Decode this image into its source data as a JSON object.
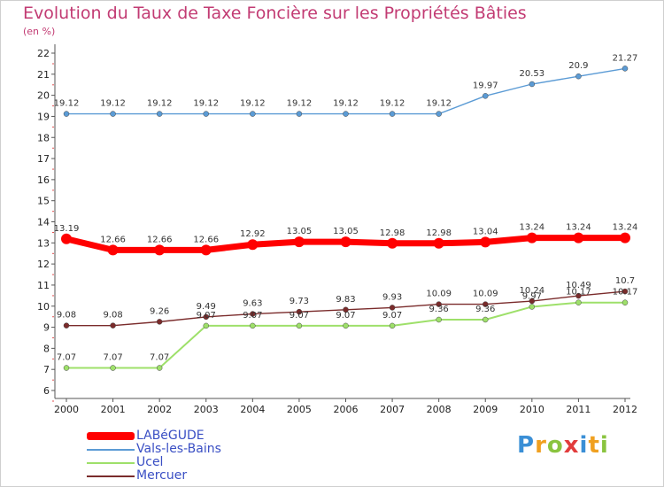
{
  "chart_data": {
    "type": "line",
    "title": "Evolution du Taux de Taxe Foncière sur les Propriétés Bâties",
    "unit_label": "(en %)",
    "xlabel": "",
    "ylabel": "",
    "categories": [
      "2000",
      "2001",
      "2002",
      "2003",
      "2004",
      "2005",
      "2006",
      "2007",
      "2008",
      "2009",
      "2010",
      "2011",
      "2012"
    ],
    "ylim": [
      6,
      22
    ],
    "yticks": [
      6,
      7,
      8,
      9,
      10,
      11,
      12,
      13,
      14,
      15,
      16,
      17,
      18,
      19,
      20,
      21,
      22
    ],
    "grid": false,
    "legend_position": "bottom-left",
    "series": [
      {
        "name": "LABéGUDE",
        "color": "#ff0000",
        "values": [
          13.19,
          12.66,
          12.66,
          12.66,
          12.92,
          13.05,
          13.05,
          12.98,
          12.98,
          13.04,
          13.24,
          13.24,
          13.24
        ],
        "labels": [
          "13.19",
          "12.66",
          "12.66",
          "12.66",
          "12.92",
          "13.05",
          "13.05",
          "12.98",
          "12.98",
          "13.04",
          "13.24",
          "13.24",
          "13.24"
        ]
      },
      {
        "name": "Vals-les-Bains",
        "color": "#5b9bd5",
        "values": [
          19.12,
          19.12,
          19.12,
          19.12,
          19.12,
          19.12,
          19.12,
          19.12,
          19.12,
          19.97,
          20.53,
          20.9,
          21.27
        ],
        "labels": [
          "19.12",
          "19.12",
          "19.12",
          "19.12",
          "19.12",
          "19.12",
          "19.12",
          "19.12",
          "19.12",
          "19.97",
          "20.53",
          "20.9",
          "21.27"
        ]
      },
      {
        "name": "Ucel",
        "color": "#9ee06a",
        "values": [
          7.07,
          7.07,
          7.07,
          9.07,
          9.07,
          9.07,
          9.07,
          9.07,
          9.36,
          9.36,
          9.97,
          10.17,
          10.17
        ],
        "labels": [
          "7.07",
          "7.07",
          "7.07",
          "9.07",
          "9.07",
          "9.07",
          "9.07",
          "9.07",
          "9.36",
          "9.36",
          "9.97",
          "10.17",
          "10.17"
        ]
      },
      {
        "name": "Mercuer",
        "color": "#7a2b2b",
        "values": [
          9.08,
          9.08,
          9.26,
          9.49,
          9.63,
          9.73,
          9.83,
          9.93,
          10.09,
          10.09,
          10.24,
          10.49,
          10.7
        ],
        "labels": [
          "9.08",
          "9.08",
          "9.26",
          "9.49",
          "9.63",
          "9.73",
          "9.83",
          "9.93",
          "10.09",
          "10.09",
          "10.24",
          "10.49",
          "10.7"
        ]
      }
    ]
  },
  "logo": {
    "letters": [
      "P",
      "r",
      "o",
      "x",
      "i",
      "t",
      "i"
    ],
    "colors": [
      "#3a8fd6",
      "#f0a020",
      "#8ac43f",
      "#e23c3c",
      "#3a8fd6",
      "#f0a020",
      "#8ac43f"
    ]
  }
}
